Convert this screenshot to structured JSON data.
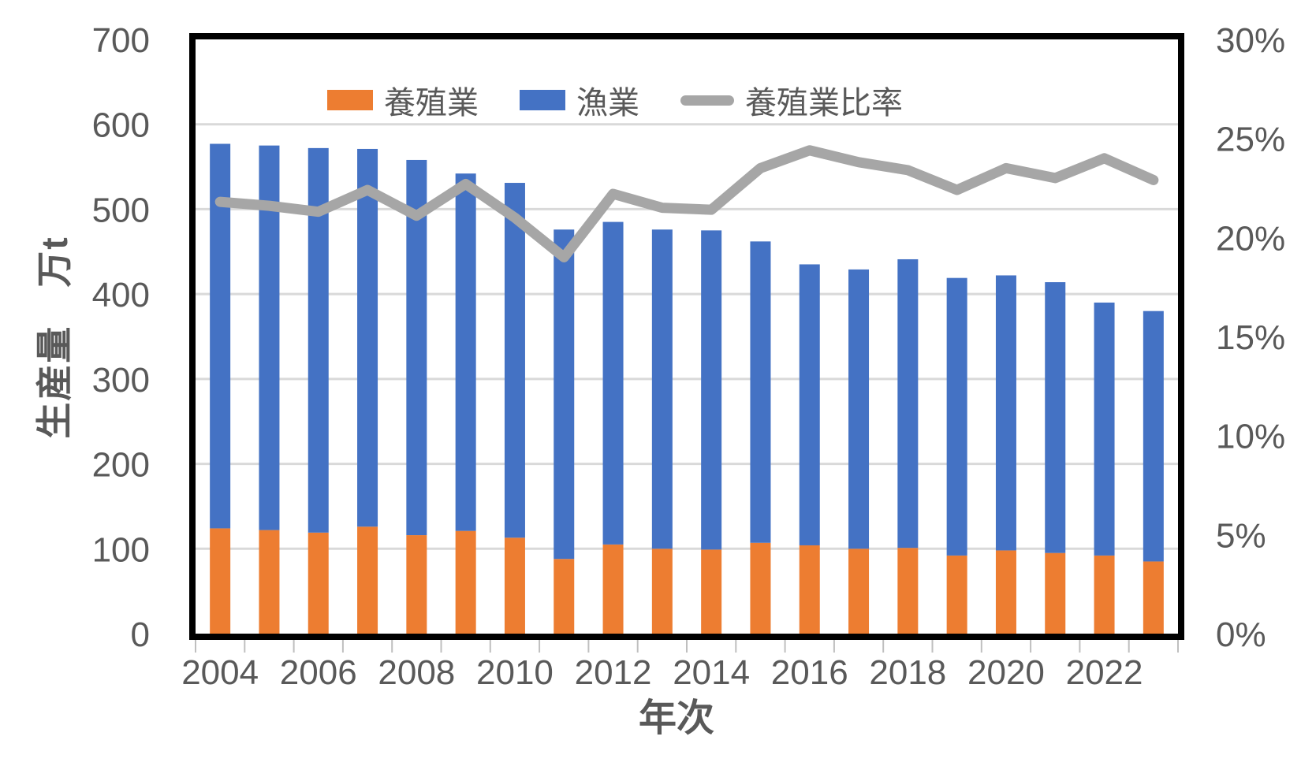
{
  "page": {
    "background": "#FFFFFF",
    "description": "Stacked column chart with ratio line (Excel style)"
  },
  "chart_data": {
    "type": "bar",
    "subtype": "stacked-columns-with-line-overlay",
    "categories": [
      "2004",
      "2005",
      "2006",
      "2007",
      "2008",
      "2009",
      "2010",
      "2011",
      "2012",
      "2013",
      "2014",
      "2015",
      "2016",
      "2017",
      "2018",
      "2019",
      "2020",
      "2021",
      "2022",
      "2023"
    ],
    "series": [
      {
        "name": "養殖業",
        "render": "bar",
        "stack": "production",
        "axis": "left",
        "color": "#ED7D31",
        "values": [
          124,
          122,
          119,
          126,
          116,
          121,
          113,
          88,
          105,
          100,
          99,
          107,
          104,
          100,
          101,
          92,
          98,
          95,
          92,
          85
        ]
      },
      {
        "name": "漁業",
        "render": "bar",
        "stack": "production",
        "axis": "left",
        "color": "#4472C4",
        "values": [
          453,
          453,
          453,
          445,
          442,
          421,
          418,
          388,
          380,
          376,
          376,
          355,
          331,
          329,
          340,
          327,
          324,
          319,
          298,
          295
        ]
      },
      {
        "name": "養殖業比率",
        "render": "line",
        "axis": "right",
        "color": "#A6A6A6",
        "values": [
          21.8,
          21.6,
          21.3,
          22.4,
          21.1,
          22.7,
          21.0,
          19.0,
          22.2,
          21.5,
          21.4,
          23.5,
          24.4,
          23.8,
          23.4,
          22.4,
          23.5,
          23.0,
          24.0,
          22.9
        ]
      }
    ],
    "stack_totals": [
      577,
      575,
      572,
      571,
      558,
      542,
      531,
      476,
      485,
      476,
      475,
      462,
      435,
      429,
      441,
      419,
      422,
      414,
      390,
      380
    ],
    "y_axis_left": {
      "title": "生産量　万t",
      "min": 0,
      "max": 700,
      "step": 100,
      "tick_labels": [
        "0",
        "100",
        "200",
        "300",
        "400",
        "500",
        "600",
        "700"
      ]
    },
    "y_axis_right": {
      "min": 0,
      "max": 30,
      "step": 5,
      "tick_labels": [
        "0%",
        "5%",
        "10%",
        "15%",
        "20%",
        "25%",
        "30%"
      ]
    },
    "x_axis": {
      "title": "年次",
      "tick_labels": [
        "2004",
        "2006",
        "2008",
        "2010",
        "2012",
        "2014",
        "2016",
        "2018",
        "2020",
        "2022"
      ],
      "labeled_every_n_categories": 2
    },
    "legend": {
      "position": "top",
      "items": [
        {
          "label": "養殖業",
          "swatch": "rect",
          "color": "#ED7D31"
        },
        {
          "label": "漁業",
          "swatch": "rect",
          "color": "#4472C4"
        },
        {
          "label": "養殖業比率",
          "swatch": "line",
          "color": "#A6A6A6"
        }
      ]
    },
    "grid": {
      "horizontal": true,
      "vertical": false,
      "color": "#D9D9D9"
    },
    "frame": {
      "border_color": "#000000",
      "tick_color": "#BFBFBF",
      "axis_text_color": "#595959"
    },
    "legend_position": "top-center"
  }
}
